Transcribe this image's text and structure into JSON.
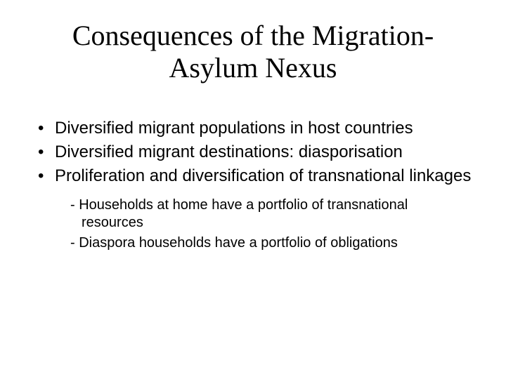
{
  "title_line1": "Consequences of the Migration-",
  "title_line2": "Asylum Nexus",
  "bullets": [
    "Diversified migrant populations in host countries",
    " Diversified migrant destinations: diasporisation",
    "Proliferation and diversification of transnational linkages"
  ],
  "sub_bullets": [
    "- Households at home have a portfolio of transnational resources",
    "- Diaspora households have a portfolio of obligations"
  ],
  "colors": {
    "background": "#ffffff",
    "text": "#000000"
  },
  "typography": {
    "title_font": "Times New Roman",
    "title_size_pt": 40,
    "body_font": "Arial",
    "body_size_pt": 24,
    "sub_size_pt": 20
  }
}
